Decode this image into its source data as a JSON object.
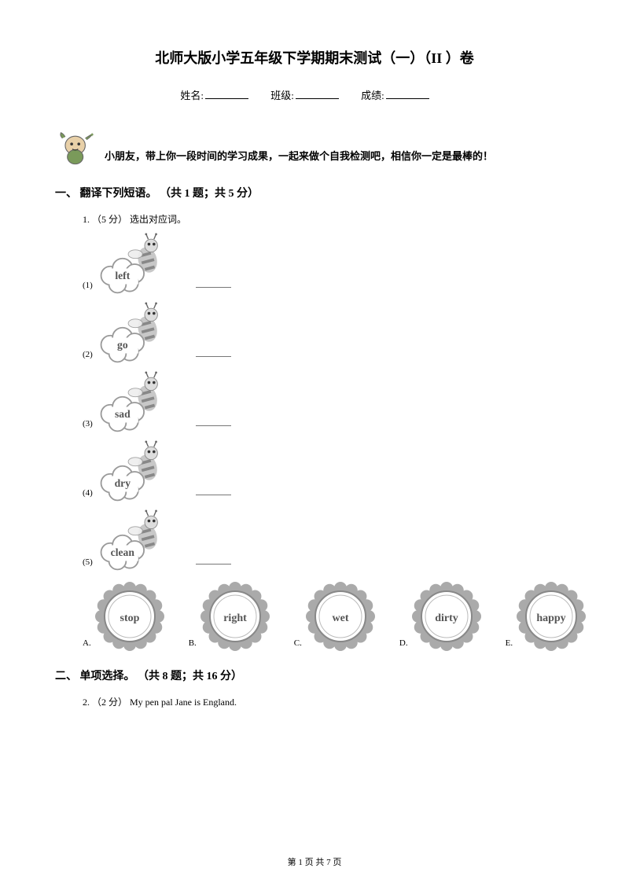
{
  "title": "北师大版小学五年级下学期期末测试（一）（II ）卷",
  "info": {
    "name_label": "姓名:",
    "class_label": "班级:",
    "score_label": "成绩:"
  },
  "intro": "小朋友，带上你一段时间的学习成果，一起来做个自我检测吧，相信你一定是最棒的！",
  "section1": {
    "header": "一、 翻译下列短语。 （共 1 题；共 5 分）",
    "q1_prefix": "1. （5 分） 选出对应词。",
    "items": [
      {
        "num": "(1)",
        "word": "left"
      },
      {
        "num": "(2)",
        "word": "go"
      },
      {
        "num": "(3)",
        "word": "sad"
      },
      {
        "num": "(4)",
        "word": "dry"
      },
      {
        "num": "(5)",
        "word": "clean"
      }
    ],
    "options": [
      {
        "letter": "A.",
        "word": "stop"
      },
      {
        "letter": "B.",
        "word": "right"
      },
      {
        "letter": "C.",
        "word": "wet"
      },
      {
        "letter": "D.",
        "word": "dirty"
      },
      {
        "letter": "E.",
        "word": "happy"
      }
    ]
  },
  "section2": {
    "header": "二、 单项选择。 （共 8 题；共 16 分）",
    "q2": "2. （2 分）  My pen pal Jane is         England."
  },
  "footer": "第 1 页 共 7 页",
  "colors": {
    "text": "#000000",
    "bg": "#ffffff",
    "gray_light": "#c8c8c8",
    "gray_mid": "#999999",
    "gray_dark": "#555555"
  }
}
